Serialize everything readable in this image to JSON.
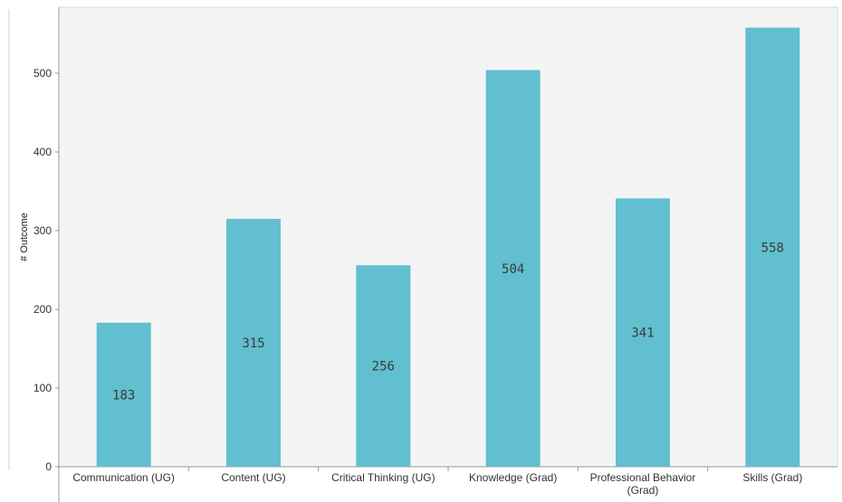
{
  "chart_data": {
    "type": "bar",
    "categories": [
      "Communication (UG)",
      "Content (UG)",
      "Critical Thinking (UG)",
      "Knowledge (Grad)",
      "Professional Behavior (Grad)",
      "Skills (Grad)"
    ],
    "values": [
      183,
      315,
      256,
      504,
      341,
      558
    ],
    "data_labels": [
      "183",
      "315",
      "256",
      "504",
      "341",
      "558"
    ],
    "y_ticks": [
      "0",
      "100",
      "200",
      "300",
      "400",
      "500"
    ],
    "ylabel": "# Outcome",
    "ylim": [
      0,
      560
    ],
    "grid": false,
    "legend": "none",
    "bar_color": "#62bfcf",
    "plot_background": "#f4f4f4"
  }
}
